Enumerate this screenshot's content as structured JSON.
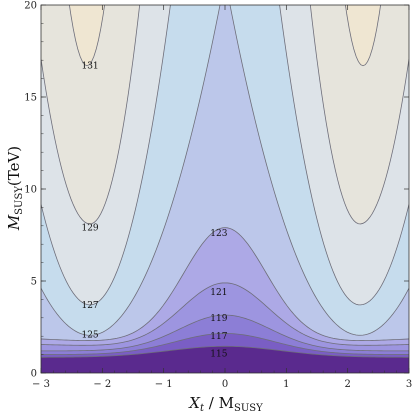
{
  "chart_data": {
    "type": "contour",
    "xlabel": {
      "main": "X",
      "sub": "t",
      "rest": " / M",
      "rest_sub": "SUSY"
    },
    "ylabel": {
      "main": "M",
      "sub": "SUSY",
      "rest": "(TeV)"
    },
    "xlim": [
      -3,
      3
    ],
    "ylim": [
      0,
      20
    ],
    "x_ticks": [
      -3,
      -2,
      -1,
      0,
      1,
      2,
      3
    ],
    "x_tick_labels": [
      "− 3",
      "− 2",
      "− 1",
      "0",
      "1",
      "2",
      "3"
    ],
    "y_ticks": [
      0,
      5,
      10,
      15,
      20
    ],
    "y_tick_labels": [
      "0",
      "5",
      "10",
      "15",
      "20"
    ],
    "contour_levels": [
      115,
      117,
      119,
      121,
      123,
      125,
      127,
      129,
      131
    ],
    "contour_labels": [
      {
        "text": "131",
        "x": -2.2,
        "y": 16.7
      },
      {
        "text": "129",
        "x": -2.2,
        "y": 7.9
      },
      {
        "text": "127",
        "x": -2.2,
        "y": 3.7
      },
      {
        "text": "125",
        "x": -2.2,
        "y": 2.1
      },
      {
        "text": "123",
        "x": -0.1,
        "y": 7.6
      },
      {
        "text": "121",
        "x": -0.1,
        "y": 4.4
      },
      {
        "text": "119",
        "x": -0.1,
        "y": 3.0
      },
      {
        "text": "117",
        "x": -0.1,
        "y": 2.0
      },
      {
        "text": "115",
        "x": -0.1,
        "y": 1.05
      }
    ],
    "fill_colors": [
      "#5a2a8e",
      "#7a5ec4",
      "#8c7ed6",
      "#9d95e0",
      "#ada9e6",
      "#bcc7ea",
      "#c6dced",
      "#dde3e8",
      "#e6e4dc",
      "#efe6d2"
    ],
    "line_color": "#6e6e7a"
  }
}
